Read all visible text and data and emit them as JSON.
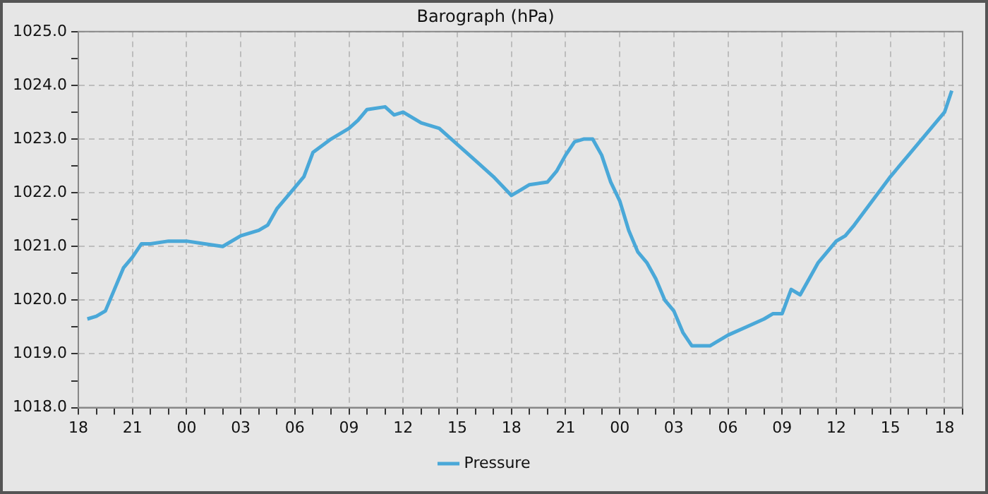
{
  "chart_data": {
    "type": "line",
    "title": "Barograph (hPa)",
    "legend": "bottom",
    "grid": true,
    "marker": "none",
    "line_style": "solid",
    "xlim": [
      18,
      67
    ],
    "ylim": [
      1018,
      1025
    ],
    "xticks": [
      {
        "value": 18,
        "label": "18"
      },
      {
        "value": 19,
        "label": null
      },
      {
        "value": 20,
        "label": null
      },
      {
        "value": 21,
        "label": "21"
      },
      {
        "value": 22,
        "label": null
      },
      {
        "value": 23,
        "label": null
      },
      {
        "value": 24,
        "label": "00"
      },
      {
        "value": 25,
        "label": null
      },
      {
        "value": 26,
        "label": null
      },
      {
        "value": 27,
        "label": "03"
      },
      {
        "value": 28,
        "label": null
      },
      {
        "value": 29,
        "label": null
      },
      {
        "value": 30,
        "label": "06"
      },
      {
        "value": 31,
        "label": null
      },
      {
        "value": 32,
        "label": null
      },
      {
        "value": 33,
        "label": "09"
      },
      {
        "value": 34,
        "label": null
      },
      {
        "value": 35,
        "label": null
      },
      {
        "value": 36,
        "label": "12"
      },
      {
        "value": 37,
        "label": null
      },
      {
        "value": 38,
        "label": null
      },
      {
        "value": 39,
        "label": "15"
      },
      {
        "value": 40,
        "label": null
      },
      {
        "value": 41,
        "label": null
      },
      {
        "value": 42,
        "label": "18"
      },
      {
        "value": 43,
        "label": null
      },
      {
        "value": 44,
        "label": null
      },
      {
        "value": 45,
        "label": "21"
      },
      {
        "value": 46,
        "label": null
      },
      {
        "value": 47,
        "label": null
      },
      {
        "value": 48,
        "label": "00"
      },
      {
        "value": 49,
        "label": null
      },
      {
        "value": 50,
        "label": null
      },
      {
        "value": 51,
        "label": "03"
      },
      {
        "value": 52,
        "label": null
      },
      {
        "value": 53,
        "label": null
      },
      {
        "value": 54,
        "label": "06"
      },
      {
        "value": 55,
        "label": null
      },
      {
        "value": 56,
        "label": null
      },
      {
        "value": 57,
        "label": "09"
      },
      {
        "value": 58,
        "label": null
      },
      {
        "value": 59,
        "label": null
      },
      {
        "value": 60,
        "label": "12"
      },
      {
        "value": 61,
        "label": null
      },
      {
        "value": 62,
        "label": null
      },
      {
        "value": 63,
        "label": "15"
      },
      {
        "value": 64,
        "label": null
      },
      {
        "value": 65,
        "label": null
      },
      {
        "value": 66,
        "label": "18"
      },
      {
        "value": 67,
        "label": null
      }
    ],
    "yticks": [
      {
        "value": 1018,
        "label": "1018.0"
      },
      {
        "value": 1018.5,
        "label": null
      },
      {
        "value": 1019,
        "label": "1019.0"
      },
      {
        "value": 1019.5,
        "label": null
      },
      {
        "value": 1020,
        "label": "1020.0"
      },
      {
        "value": 1020.5,
        "label": null
      },
      {
        "value": 1021,
        "label": "1021.0"
      },
      {
        "value": 1021.5,
        "label": null
      },
      {
        "value": 1022,
        "label": "1022.0"
      },
      {
        "value": 1022.5,
        "label": null
      },
      {
        "value": 1023,
        "label": "1023.0"
      },
      {
        "value": 1023.5,
        "label": null
      },
      {
        "value": 1024,
        "label": "1024.0"
      },
      {
        "value": 1024.5,
        "label": null
      },
      {
        "value": 1025,
        "label": "1025.0"
      }
    ],
    "x": [
      18.5,
      19,
      19.5,
      20,
      20.5,
      21,
      21.5,
      22,
      23,
      24,
      25,
      26,
      27,
      28,
      28.5,
      29,
      30,
      30.5,
      31,
      32,
      33,
      33.5,
      34,
      35,
      35.5,
      36,
      37,
      38,
      39,
      40,
      41,
      42,
      42.5,
      43,
      44,
      44.5,
      45,
      45.5,
      46,
      46.5,
      47,
      47.5,
      48,
      48.5,
      49,
      49.5,
      50,
      50.5,
      51,
      51.5,
      52,
      53,
      54,
      55,
      56,
      56.5,
      57,
      57.5,
      58,
      58.5,
      59,
      60,
      60.5,
      61,
      62,
      63,
      64,
      65,
      66,
      66.4
    ],
    "series": [
      {
        "name": "Pressure",
        "color": "#4aa8d8",
        "values": [
          1019.65,
          1019.7,
          1019.8,
          1020.2,
          1020.6,
          1020.8,
          1021.05,
          1021.05,
          1021.1,
          1021.1,
          1021.05,
          1021.0,
          1021.2,
          1021.3,
          1021.4,
          1021.7,
          1022.1,
          1022.3,
          1022.75,
          1023.0,
          1023.2,
          1023.35,
          1023.55,
          1023.6,
          1023.45,
          1023.5,
          1023.3,
          1023.2,
          1022.9,
          1022.6,
          1022.3,
          1021.95,
          1022.05,
          1022.15,
          1022.2,
          1022.4,
          1022.7,
          1022.95,
          1023.0,
          1023.0,
          1022.7,
          1022.2,
          1021.85,
          1021.3,
          1020.9,
          1020.7,
          1020.4,
          1020.0,
          1019.8,
          1019.4,
          1019.15,
          1019.15,
          1019.35,
          1019.5,
          1019.65,
          1019.75,
          1019.75,
          1020.2,
          1020.1,
          1020.4,
          1020.7,
          1021.1,
          1021.2,
          1021.4,
          1021.85,
          1022.3,
          1022.7,
          1023.1,
          1023.5,
          1023.9
        ]
      }
    ]
  }
}
